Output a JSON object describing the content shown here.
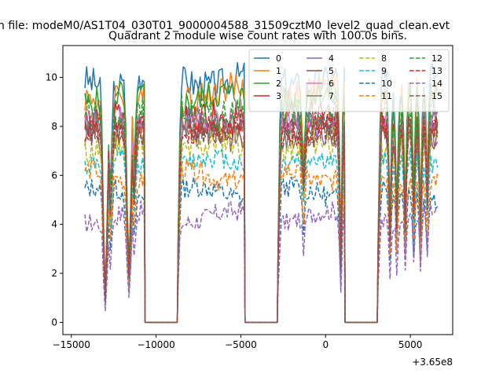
{
  "figure": {
    "suptitle": "n file: modeM0/AS1T04_030T01_9000004588_31509cztM0_level2_quad_clean.evt",
    "offset_label": "+3.65e8"
  },
  "chart_data": {
    "type": "line",
    "title": "Quadrant 2 module wise count rates with 100.0s bins.",
    "xlabel": "",
    "ylabel": "",
    "xlim": [
      -15500,
      7500
    ],
    "ylim": [
      -0.5,
      11.3
    ],
    "x_offset": 365000000,
    "xticks": [
      -15000,
      -10000,
      -5000,
      0,
      5000
    ],
    "xtick_labels": [
      "−15000",
      "−10000",
      "−5000",
      "0",
      "5000"
    ],
    "yticks": [
      0,
      2,
      4,
      6,
      8,
      10
    ],
    "ytick_labels": [
      "0",
      "2",
      "4",
      "6",
      "8",
      "10"
    ],
    "legend_position": "top-right",
    "legend_columns": 4,
    "segments": [
      [
        -14200,
        -10700
      ],
      [
        -8700,
        -4800
      ],
      [
        -2800,
        1100
      ],
      [
        3100,
        6600
      ]
    ],
    "gaps": [
      [
        -10700,
        -8700
      ],
      [
        -4800,
        -2800
      ],
      [
        1100,
        3100
      ]
    ],
    "series": [
      {
        "name": "0",
        "color": "#1f77b4",
        "dash": "solid",
        "level": 9.9
      },
      {
        "name": "1",
        "color": "#ff7f0e",
        "dash": "solid",
        "level": 9.4
      },
      {
        "name": "2",
        "color": "#2ca02c",
        "dash": "solid",
        "level": 9.1
      },
      {
        "name": "3",
        "color": "#d62728",
        "dash": "solid",
        "level": 8.2
      },
      {
        "name": "4",
        "color": "#9467bd",
        "dash": "solid",
        "level": 8.0
      },
      {
        "name": "5",
        "color": "#8c564b",
        "dash": "solid",
        "level": 7.8
      },
      {
        "name": "6",
        "color": "#e377c2",
        "dash": "solid",
        "level": 8.4
      },
      {
        "name": "7",
        "color": "#7f7f7f",
        "dash": "solid",
        "level": 7.9
      },
      {
        "name": "8",
        "color": "#bcbd22",
        "dash": "dashed",
        "level": 7.2
      },
      {
        "name": "9",
        "color": "#17becf",
        "dash": "dashed",
        "level": 6.5
      },
      {
        "name": "10",
        "color": "#1f77b4",
        "dash": "dashed",
        "level": 5.3
      },
      {
        "name": "11",
        "color": "#ff7f0e",
        "dash": "dashed",
        "level": 6.0
      },
      {
        "name": "12",
        "color": "#2ca02c",
        "dash": "dashed",
        "level": 8.6
      },
      {
        "name": "13",
        "color": "#d62728",
        "dash": "dashed",
        "level": 8.0
      },
      {
        "name": "14",
        "color": "#9467bd",
        "dash": "dashed",
        "level": 4.3
      },
      {
        "name": "15",
        "color": "#8c564b",
        "dash": "dashed",
        "level": 7.7
      }
    ]
  }
}
